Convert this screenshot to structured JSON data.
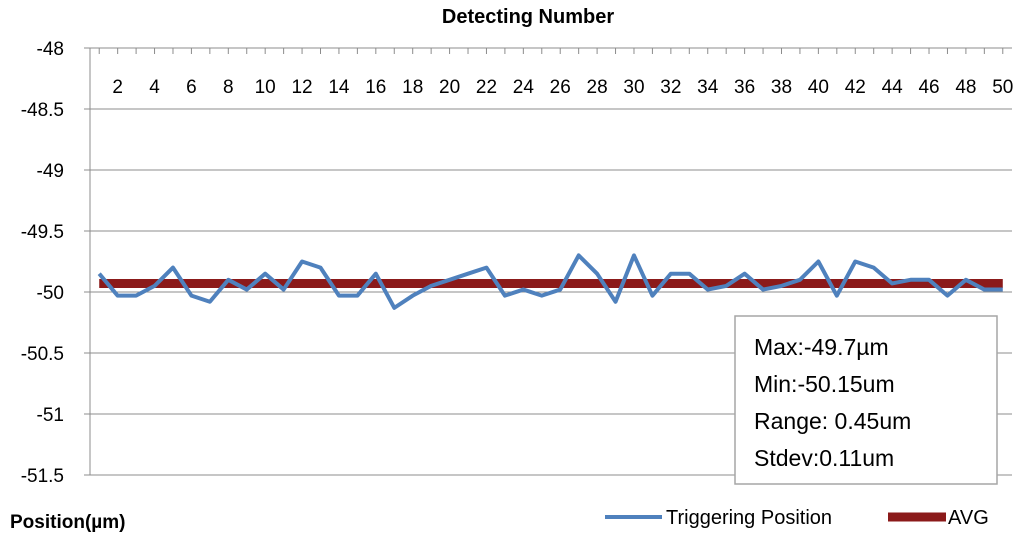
{
  "chart_data": {
    "type": "line",
    "title": "Detecting Number",
    "ylabel": "Position(µm)",
    "xlabel": "",
    "x": [
      1,
      2,
      3,
      4,
      5,
      6,
      7,
      8,
      9,
      10,
      11,
      12,
      13,
      14,
      15,
      16,
      17,
      18,
      19,
      20,
      21,
      22,
      23,
      24,
      25,
      26,
      27,
      28,
      29,
      30,
      31,
      32,
      33,
      34,
      35,
      36,
      37,
      38,
      39,
      40,
      41,
      42,
      43,
      44,
      45,
      46,
      47,
      48,
      49,
      50
    ],
    "x_tick_labels": [
      "2",
      "4",
      "6",
      "8",
      "10",
      "12",
      "14",
      "16",
      "18",
      "20",
      "22",
      "24",
      "26",
      "28",
      "30",
      "32",
      "34",
      "36",
      "38",
      "40",
      "42",
      "44",
      "46",
      "48",
      "50"
    ],
    "y_tick_labels": [
      "-48",
      "-48.5",
      "-49",
      "-49.5",
      "-50",
      "-50.5",
      "-51",
      "-51.5"
    ],
    "ylim": [
      -51.5,
      -48
    ],
    "xlim": [
      0.5,
      50.5
    ],
    "x_axis_position": "top",
    "grid": "horizontal",
    "series": [
      {
        "name": "Triggering Position",
        "color": "#4f81bd",
        "values": [
          -49.85,
          -50.03,
          -50.03,
          -49.95,
          -49.8,
          -50.03,
          -50.08,
          -49.9,
          -49.98,
          -49.85,
          -49.98,
          -49.75,
          -49.8,
          -50.03,
          -50.03,
          -49.85,
          -50.13,
          -50.03,
          -49.95,
          -49.9,
          -49.85,
          -49.8,
          -50.03,
          -49.98,
          -50.03,
          -49.98,
          -49.7,
          -49.85,
          -50.08,
          -49.7,
          -50.03,
          -49.85,
          -49.85,
          -49.98,
          -49.95,
          -49.85,
          -49.98,
          -49.95,
          -49.9,
          -49.75,
          -50.03,
          -49.75,
          -49.8,
          -49.93,
          -49.9,
          -49.9,
          -50.03,
          -49.9,
          -49.98,
          -49.98
        ]
      },
      {
        "name": "AVG",
        "color": "#8b1a1a",
        "values": [
          -49.93,
          -49.93,
          -49.93,
          -49.93,
          -49.93,
          -49.93,
          -49.93,
          -49.93,
          -49.93,
          -49.93,
          -49.93,
          -49.93,
          -49.93,
          -49.93,
          -49.93,
          -49.93,
          -49.93,
          -49.93,
          -49.93,
          -49.93,
          -49.93,
          -49.93,
          -49.93,
          -49.93,
          -49.93,
          -49.93,
          -49.93,
          -49.93,
          -49.93,
          -49.93,
          -49.93,
          -49.93,
          -49.93,
          -49.93,
          -49.93,
          -49.93,
          -49.93,
          -49.93,
          -49.93,
          -49.93,
          -49.93,
          -49.93,
          -49.93,
          -49.93,
          -49.93,
          -49.93,
          -49.93,
          -49.93,
          -49.93,
          -49.93
        ]
      }
    ],
    "legend": {
      "position": "bottom-right",
      "entries": [
        "Triggering Position",
        "AVG"
      ]
    },
    "stats_box": {
      "lines": [
        "Max:-49.7µm",
        "Min:-50.15um",
        "Range: 0.45um",
        "Stdev:0.11um"
      ]
    }
  }
}
